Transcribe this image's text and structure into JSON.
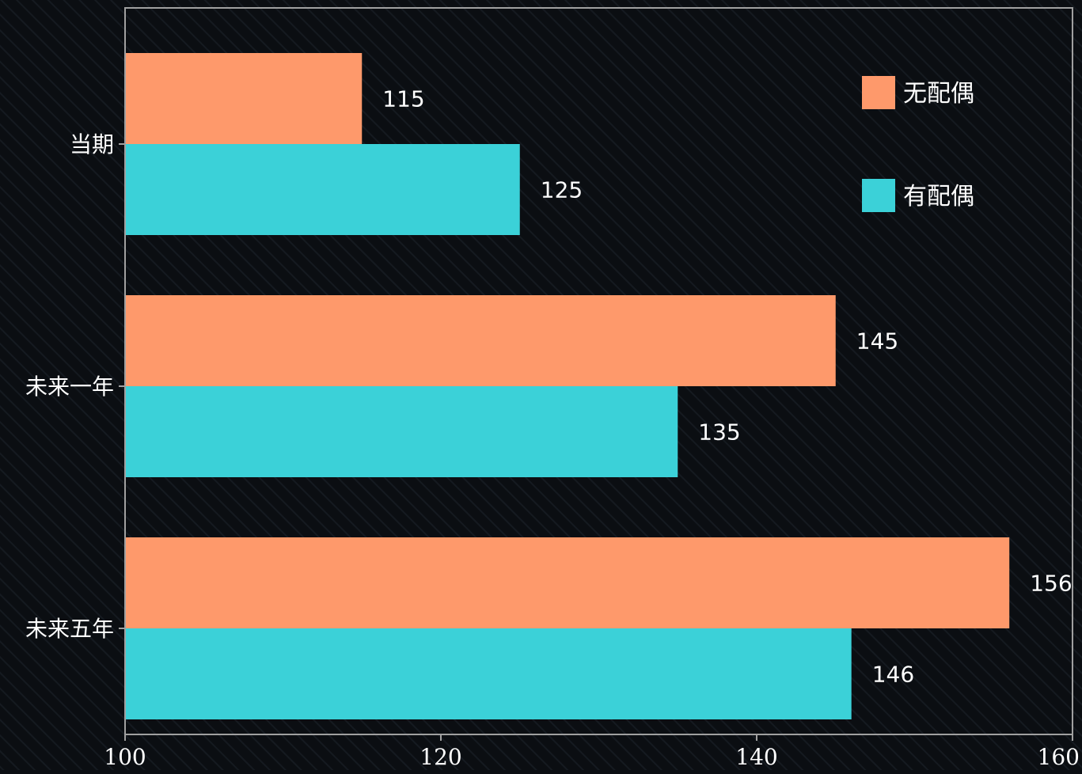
{
  "chart_data": {
    "type": "bar",
    "orientation": "horizontal",
    "categories": [
      "当期",
      "未来一年",
      "未来五年"
    ],
    "series": [
      {
        "name": "无配偶",
        "color": "#FE996B",
        "values": [
          115,
          145,
          156
        ]
      },
      {
        "name": "有配偶",
        "color": "#3BD1D8",
        "values": [
          125,
          135,
          146
        ]
      }
    ],
    "x_ticks": [
      "100",
      "120",
      "140",
      "160"
    ],
    "xlim": [
      100,
      160
    ],
    "xlabel": "",
    "ylabel": "",
    "title": "",
    "legend_position": "top-right",
    "grid": false,
    "background_color": "#0b0e12",
    "axis_color": "#a0a0a0"
  }
}
